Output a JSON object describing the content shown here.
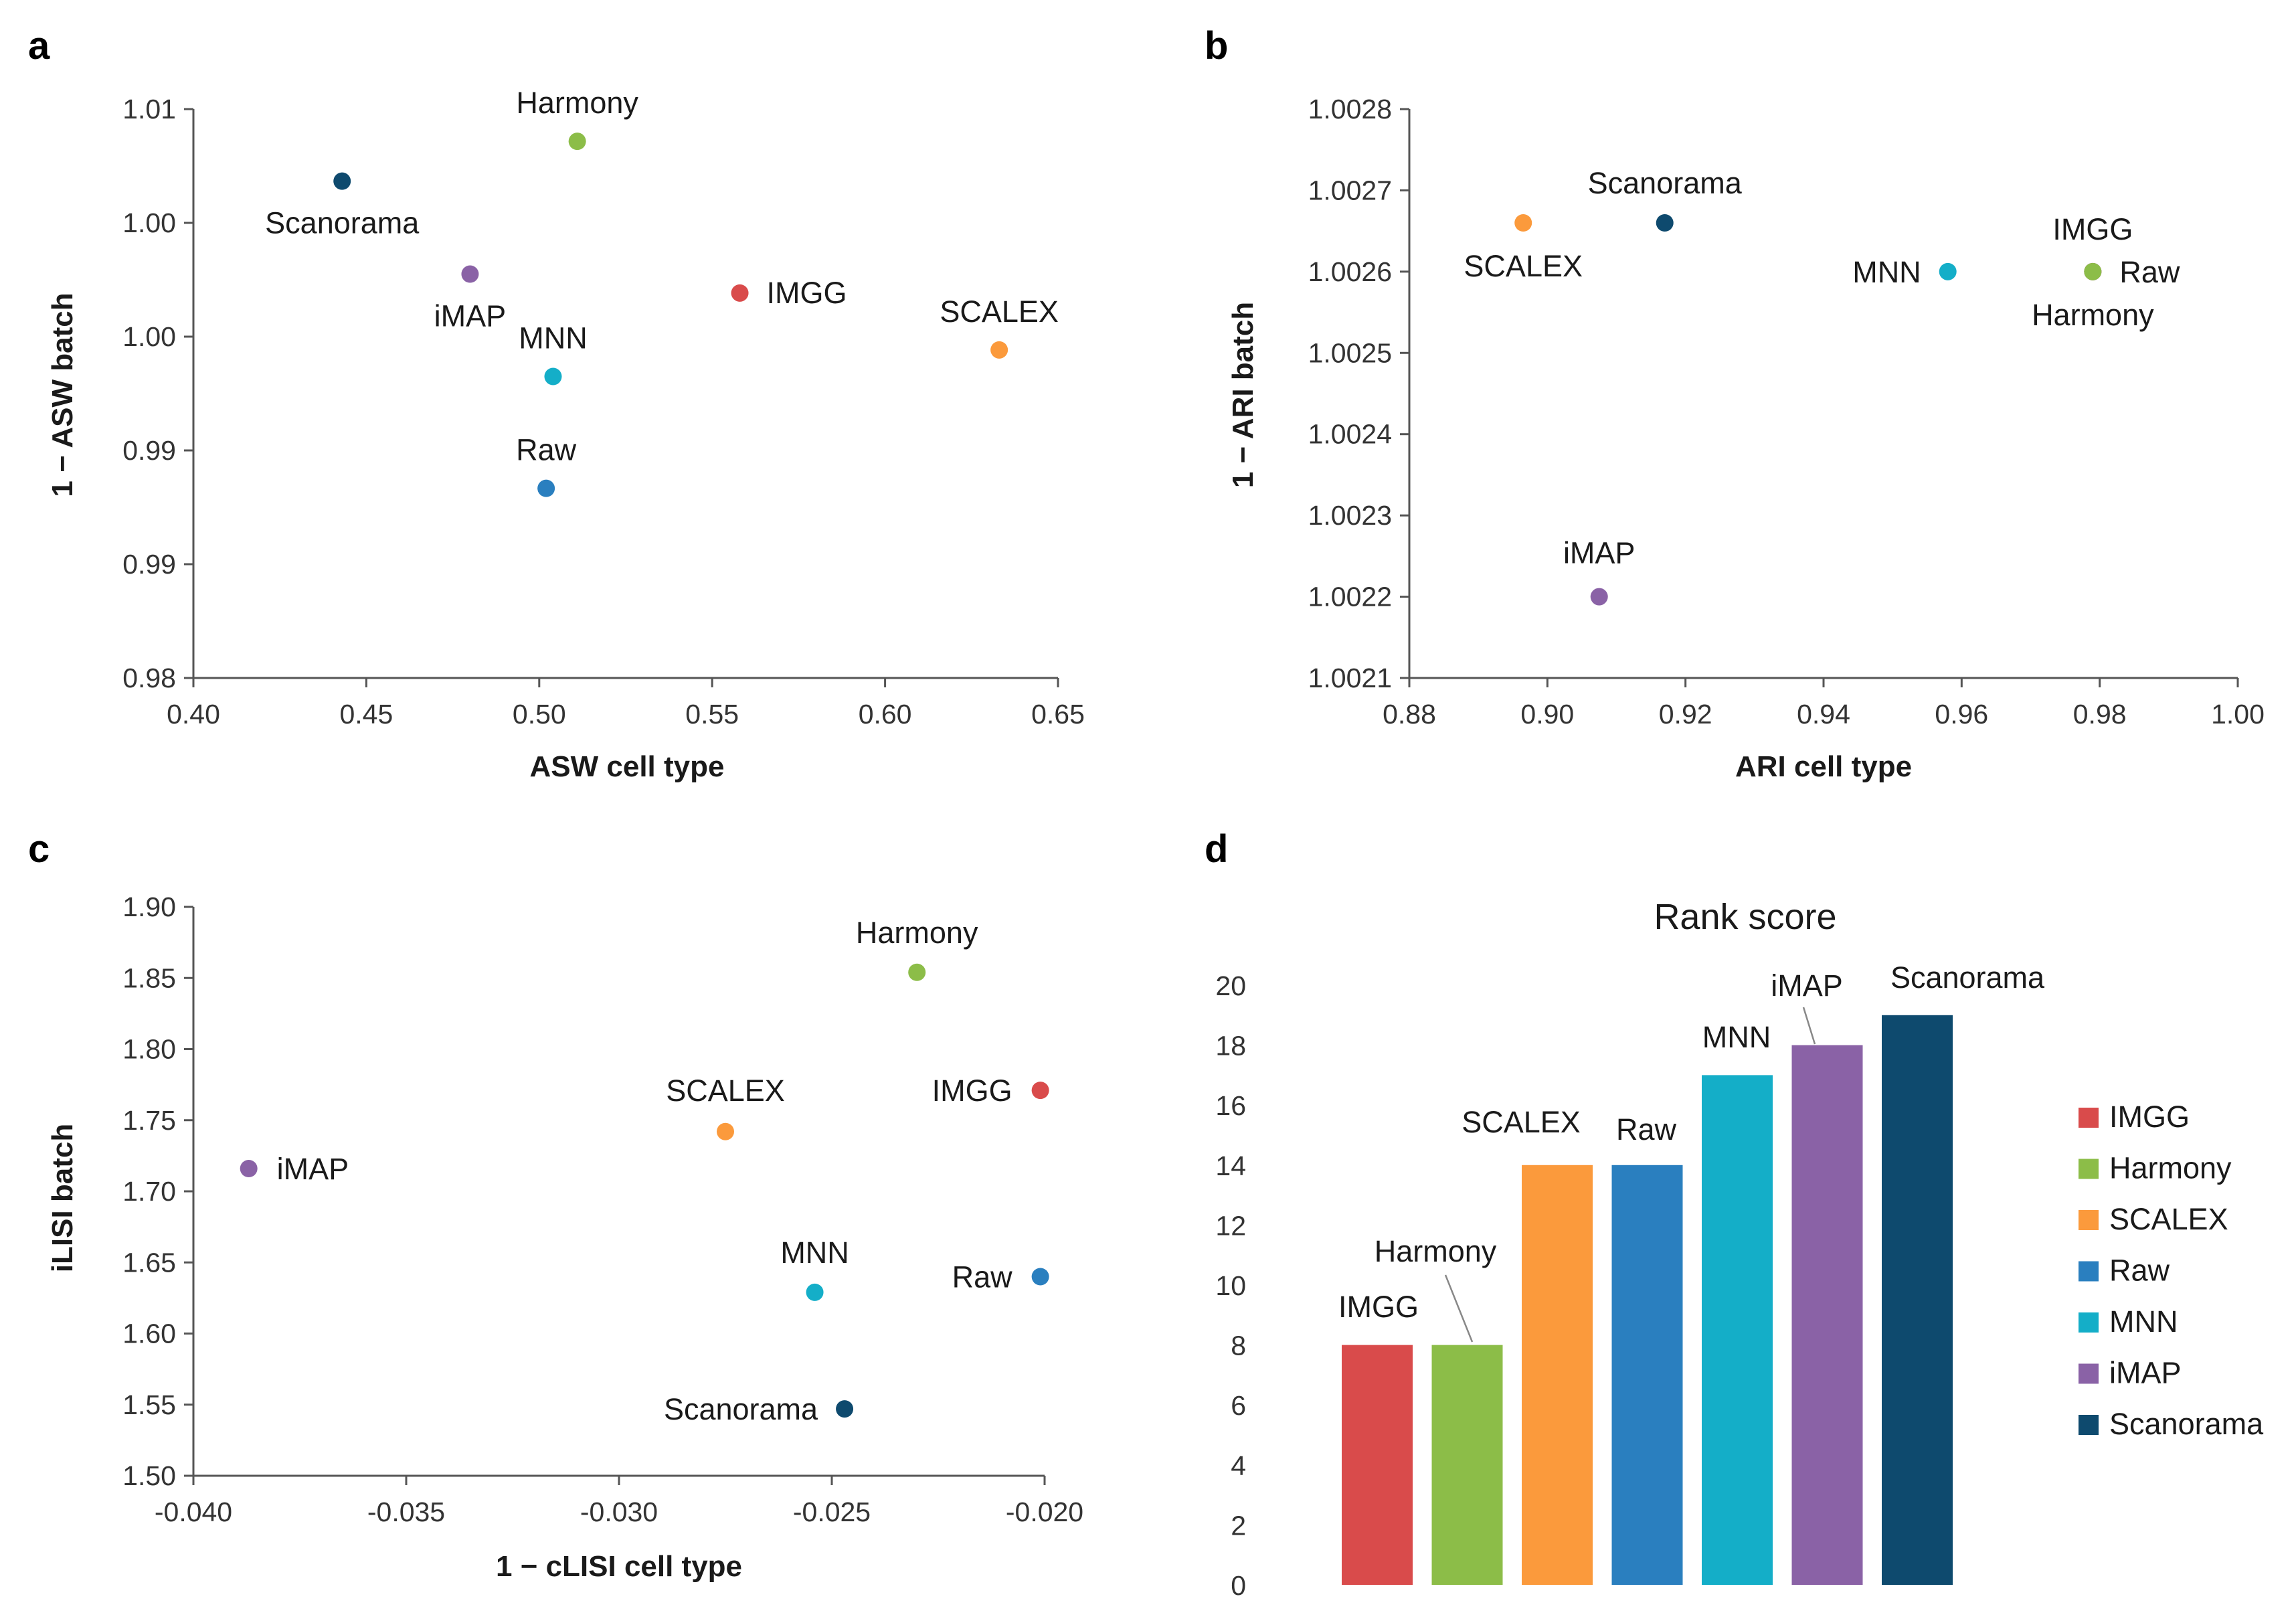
{
  "figure": {
    "colors": {
      "IMGG": "#d94b4b",
      "Harmony": "#8cbd48",
      "SCALEX": "#fb9a3c",
      "Raw": "#2a7fbf",
      "MNN": "#14aec8",
      "iMAP": "#8a62a6",
      "Scanorama": "#0e4a6e"
    }
  },
  "chart_data": [
    {
      "panel": "a",
      "type": "scatter",
      "xlabel": "ASW cell type",
      "ylabel": "1 − ASW batch",
      "xlim": [
        0.4,
        0.65
      ],
      "ylim": [
        0.98,
        1.01
      ],
      "xticks": [
        "0.40",
        "0.45",
        "0.50",
        "0.55",
        "0.60",
        "0.65"
      ],
      "yticks": [
        "0.98",
        "0.99",
        "0.99",
        "1.00",
        "1.00",
        "1.01"
      ],
      "points": [
        {
          "name": "Harmony",
          "x": 0.511,
          "y": 1.0083
        },
        {
          "name": "Scanorama",
          "x": 0.443,
          "y": 1.0062
        },
        {
          "name": "iMAP",
          "x": 0.48,
          "y": 1.0013
        },
        {
          "name": "IMGG",
          "x": 0.558,
          "y": 1.0003
        },
        {
          "name": "SCALEX",
          "x": 0.633,
          "y": 0.9973
        },
        {
          "name": "MNN",
          "x": 0.504,
          "y": 0.9959
        },
        {
          "name": "Raw",
          "x": 0.502,
          "y": 0.99
        }
      ]
    },
    {
      "panel": "b",
      "type": "scatter",
      "xlabel": "ARI cell type",
      "ylabel": "1 − ARI batch",
      "xlim": [
        0.88,
        1.0
      ],
      "ylim": [
        1.0021,
        1.0028
      ],
      "xticks": [
        "0.88",
        "0.90",
        "0.92",
        "0.94",
        "0.96",
        "0.98",
        "1.00"
      ],
      "yticks": [
        "1.0021",
        "1.0022",
        "1.0023",
        "1.0024",
        "1.0025",
        "1.0026",
        "1.0027",
        "1.0028"
      ],
      "points": [
        {
          "name": "SCALEX",
          "x": 0.8965,
          "y": 1.00266
        },
        {
          "name": "Scanorama",
          "x": 0.917,
          "y": 1.00266
        },
        {
          "name": "MNN",
          "x": 0.958,
          "y": 1.0026
        },
        {
          "name": "Raw",
          "x": 0.979,
          "y": 1.0026
        },
        {
          "name": "IMGG",
          "x": 0.979,
          "y": 1.0026
        },
        {
          "name": "Harmony",
          "x": 0.979,
          "y": 1.0026
        },
        {
          "name": "iMAP",
          "x": 0.9075,
          "y": 1.0022
        }
      ]
    },
    {
      "panel": "c",
      "type": "scatter",
      "xlabel": "1 − cLISI cell type",
      "ylabel": "iLISI batch",
      "xlim": [
        -0.04,
        -0.02
      ],
      "ylim": [
        1.5,
        1.9
      ],
      "xticks": [
        "-0.040",
        "-0.035",
        "-0.030",
        "-0.025",
        "-0.020"
      ],
      "yticks": [
        "1.50",
        "1.55",
        "1.60",
        "1.65",
        "1.70",
        "1.75",
        "1.80",
        "1.85",
        "1.90"
      ],
      "points": [
        {
          "name": "Harmony",
          "x": -0.023,
          "y": 1.854
        },
        {
          "name": "IMGG",
          "x": -0.0201,
          "y": 1.771
        },
        {
          "name": "SCALEX",
          "x": -0.0275,
          "y": 1.742
        },
        {
          "name": "iMAP",
          "x": -0.0387,
          "y": 1.716
        },
        {
          "name": "MNN",
          "x": -0.0254,
          "y": 1.629
        },
        {
          "name": "Raw",
          "x": -0.0201,
          "y": 1.64
        },
        {
          "name": "Scanorama",
          "x": -0.0247,
          "y": 1.547
        }
      ]
    },
    {
      "panel": "d",
      "type": "bar",
      "title": "Rank score",
      "categories": [
        "IMGG",
        "Harmony",
        "SCALEX",
        "Raw",
        "MNN",
        "iMAP",
        "Scanorama"
      ],
      "values": [
        8,
        8,
        14,
        14,
        17,
        18,
        19
      ],
      "ylim": [
        0,
        20
      ],
      "yticks": [
        "0",
        "2",
        "4",
        "6",
        "8",
        "10",
        "12",
        "14",
        "16",
        "18",
        "20"
      ],
      "legend": [
        "IMGG",
        "Harmony",
        "SCALEX",
        "Raw",
        "MNN",
        "iMAP",
        "Scanorama"
      ],
      "legend_position": "right"
    }
  ]
}
